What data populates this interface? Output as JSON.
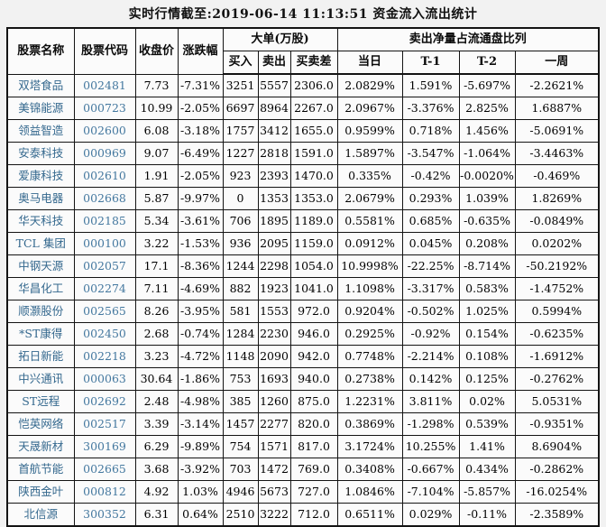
{
  "title": "实时行情截至:2019-06-14 11:13:51 资金流入流出统计",
  "colors": {
    "stock_name_link": "#34688e",
    "stock_code_link": "#44789f",
    "grid_border": "#141414",
    "text": "#000000",
    "background": "#f2f2f2"
  },
  "table": {
    "headers": {
      "stock_name": "股票名称",
      "stock_code": "股票代码",
      "close_price": "收盘价",
      "change_pct": "涨跌幅",
      "big_orders_group": "大单(万股)",
      "net_sell_group": "卖出净量占流通盘比列",
      "buy": "买入",
      "sell": "卖出",
      "buy_sell_diff": "买卖差",
      "day": "当日",
      "t1": "T-1",
      "t2": "T-2",
      "week": "一周"
    },
    "rows": [
      [
        "双塔食品",
        "002481",
        "7.73",
        "-7.31%",
        "3251",
        "5557",
        "2306.0",
        "2.0829%",
        "1.591%",
        "-5.697%",
        "-2.2621%"
      ],
      [
        "美锦能源",
        "000723",
        "10.99",
        "-2.05%",
        "6697",
        "8964",
        "2267.0",
        "2.0967%",
        "-3.376%",
        "2.825%",
        "1.6887%"
      ],
      [
        "领益智造",
        "002600",
        "6.08",
        "-3.18%",
        "1757",
        "3412",
        "1655.0",
        "0.9599%",
        "0.718%",
        "1.456%",
        "-5.0691%"
      ],
      [
        "安泰科技",
        "000969",
        "9.07",
        "-6.49%",
        "1227",
        "2818",
        "1591.0",
        "1.5897%",
        "-3.547%",
        "-1.064%",
        "-3.4463%"
      ],
      [
        "爱康科技",
        "002610",
        "1.91",
        "-2.05%",
        "923",
        "2393",
        "1470.0",
        "0.335%",
        "-0.42%",
        "-0.0020%",
        "-0.469%"
      ],
      [
        "奥马电器",
        "002668",
        "5.87",
        "-9.97%",
        "0",
        "1353",
        "1353.0",
        "2.0679%",
        "0.293%",
        "1.039%",
        "1.8269%"
      ],
      [
        "华天科技",
        "002185",
        "5.34",
        "-3.61%",
        "706",
        "1895",
        "1189.0",
        "0.5581%",
        "0.685%",
        "-0.635%",
        "-0.0849%"
      ],
      [
        "TCL 集团",
        "000100",
        "3.22",
        "-1.53%",
        "936",
        "2095",
        "1159.0",
        "0.0912%",
        "0.045%",
        "0.208%",
        "0.0202%"
      ],
      [
        "中钢天源",
        "002057",
        "17.1",
        "-8.36%",
        "1244",
        "2298",
        "1054.0",
        "10.9998%",
        "-22.25%",
        "-8.714%",
        "-50.2192%"
      ],
      [
        "华昌化工",
        "002274",
        "7.11",
        "-4.69%",
        "882",
        "1923",
        "1041.0",
        "1.1098%",
        "-3.317%",
        "0.583%",
        "-1.4752%"
      ],
      [
        "顺灏股份",
        "002565",
        "8.26",
        "-3.95%",
        "581",
        "1553",
        "972.0",
        "0.9204%",
        "-0.502%",
        "1.025%",
        "0.5994%"
      ],
      [
        "*ST康得",
        "002450",
        "2.68",
        "-0.74%",
        "1284",
        "2230",
        "946.0",
        "0.2925%",
        "-0.92%",
        "0.154%",
        "-0.6235%"
      ],
      [
        "拓日新能",
        "002218",
        "3.23",
        "-4.72%",
        "1148",
        "2090",
        "942.0",
        "0.7748%",
        "-2.214%",
        "0.108%",
        "-1.6912%"
      ],
      [
        "中兴通讯",
        "000063",
        "30.64",
        "-1.86%",
        "753",
        "1693",
        "940.0",
        "0.2738%",
        "0.142%",
        "0.125%",
        "-0.2762%"
      ],
      [
        "ST远程",
        "002692",
        "2.48",
        "-4.98%",
        "385",
        "1260",
        "875.0",
        "1.2231%",
        "3.811%",
        "0.02%",
        "5.0531%"
      ],
      [
        "恺英网络",
        "002517",
        "3.39",
        "-3.14%",
        "1457",
        "2277",
        "820.0",
        "0.3869%",
        "-1.298%",
        "0.539%",
        "-0.9351%"
      ],
      [
        "天晟新材",
        "300169",
        "6.29",
        "-9.89%",
        "754",
        "1571",
        "817.0",
        "3.1724%",
        "10.255%",
        "1.41%",
        "8.6904%"
      ],
      [
        "首航节能",
        "002665",
        "3.68",
        "-3.92%",
        "703",
        "1472",
        "769.0",
        "0.3408%",
        "-0.667%",
        "0.434%",
        "-0.2862%"
      ],
      [
        "陕西金叶",
        "000812",
        "4.92",
        "1.03%",
        "4946",
        "5673",
        "727.0",
        "1.0846%",
        "-7.104%",
        "-5.857%",
        "-16.0254%"
      ],
      [
        "北信源",
        "300352",
        "6.31",
        "0.64%",
        "2510",
        "3222",
        "712.0",
        "0.6511%",
        "0.029%",
        "-0.11%",
        "-2.3589%"
      ]
    ]
  }
}
